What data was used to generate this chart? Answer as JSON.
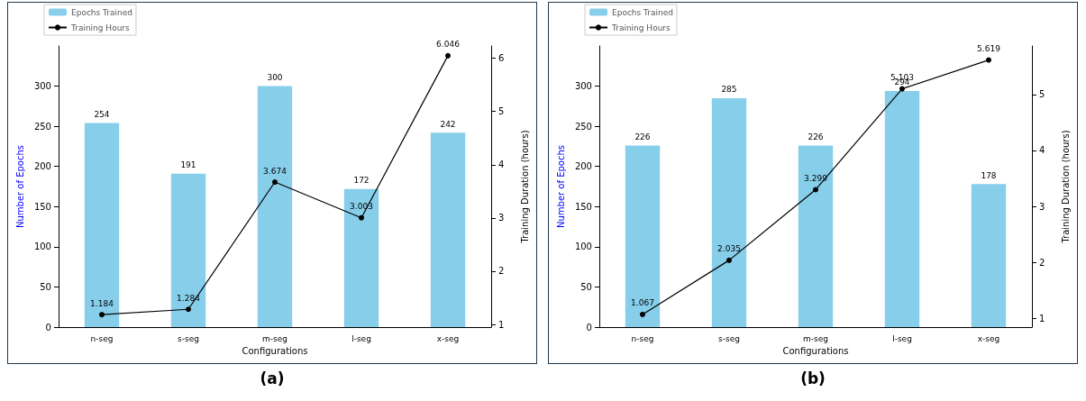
{
  "chart_data": [
    {
      "type": "bar",
      "xlabel": "Configurations",
      "ylabel": "Number of Epochs",
      "y2label": "Training Duration (hours)",
      "categories": [
        "n-seg",
        "s-seg",
        "m-seg",
        "l-seg",
        "x-seg"
      ],
      "series": [
        {
          "name": "Epochs Trained",
          "color": "#87ceeb",
          "values": [
            254,
            191,
            300,
            172,
            242
          ]
        },
        {
          "name": "Training Hours",
          "type": "line",
          "axis": "y2",
          "color": "#000000",
          "values": [
            1.184,
            1.284,
            3.674,
            3.003,
            6.046
          ]
        }
      ],
      "ylim": [
        0,
        350
      ],
      "yticks": [
        0,
        50,
        100,
        150,
        200,
        250,
        300
      ],
      "y2lim": [
        0.95,
        6.23
      ],
      "y2ticks": [
        1,
        2,
        3,
        4,
        5,
        6
      ],
      "data_labels": true,
      "marker": "circle",
      "line_style": "solid",
      "legend": "top left",
      "grid": false,
      "annotations": [
        "(a)"
      ]
    },
    {
      "type": "bar",
      "xlabel": "Configurations",
      "ylabel": "Number of Epochs",
      "y2label": "Training Duration (hours)",
      "categories": [
        "n-seg",
        "s-seg",
        "m-seg",
        "l-seg",
        "x-seg"
      ],
      "series": [
        {
          "name": "Epochs Trained",
          "color": "#87ceeb",
          "values": [
            226,
            285,
            226,
            294,
            178
          ]
        },
        {
          "name": "Training Hours",
          "type": "line",
          "axis": "y2",
          "color": "#000000",
          "values": [
            1.067,
            2.035,
            3.299,
            5.103,
            5.619
          ]
        }
      ],
      "ylim": [
        0,
        350
      ],
      "yticks": [
        0,
        50,
        100,
        150,
        200,
        250,
        300
      ],
      "y2lim": [
        0.84,
        5.87
      ],
      "y2ticks": [
        1,
        2,
        3,
        4,
        5
      ],
      "data_labels": true,
      "marker": "circle",
      "line_style": "solid",
      "legend": "top left",
      "grid": false,
      "annotations": [
        "(b)"
      ]
    }
  ]
}
